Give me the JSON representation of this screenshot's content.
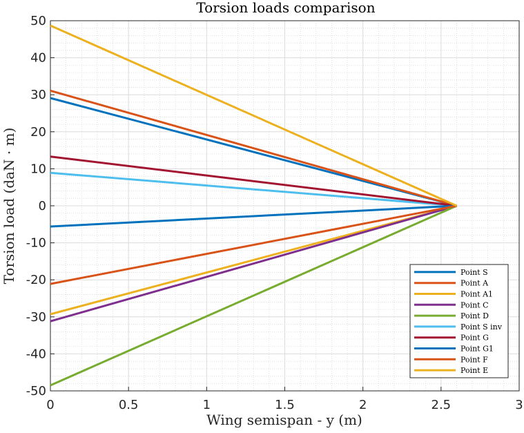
{
  "chart_data": {
    "type": "line",
    "title": "Torsion loads comparison",
    "xlabel": "Wing semispan - y (m)",
    "ylabel": "Torsion load (daN · m)",
    "xlim": [
      0,
      3
    ],
    "ylim": [
      -50,
      50
    ],
    "xticks": [
      "0",
      "0.5",
      "1",
      "1.5",
      "2",
      "2.5",
      "3"
    ],
    "yticks": [
      "50",
      "40",
      "30",
      "20",
      "10",
      "0",
      "-10",
      "-20",
      "-30",
      "-40",
      "-50"
    ],
    "grid": true,
    "minor_grid": true,
    "legend_position": "bottom-right",
    "series": [
      {
        "name": "Point S",
        "color": "#0072BD",
        "x": [
          0,
          2.6
        ],
        "y": [
          29.1,
          0
        ]
      },
      {
        "name": "Point A",
        "color": "#D95319",
        "x": [
          0,
          2.6
        ],
        "y": [
          31.1,
          0
        ]
      },
      {
        "name": "Point A1",
        "color": "#EDB120",
        "x": [
          0,
          2.6
        ],
        "y": [
          -29.3,
          0
        ]
      },
      {
        "name": "Point C",
        "color": "#7E2F8E",
        "x": [
          0,
          2.6
        ],
        "y": [
          -31.2,
          0
        ]
      },
      {
        "name": "Point D",
        "color": "#77AC30",
        "x": [
          0,
          2.6
        ],
        "y": [
          -48.5,
          0
        ]
      },
      {
        "name": "Point S inv",
        "color": "#4DBEEE",
        "x": [
          0,
          2.6
        ],
        "y": [
          8.9,
          0
        ]
      },
      {
        "name": "Point G",
        "color": "#A2142F",
        "x": [
          0,
          2.6
        ],
        "y": [
          13.3,
          0
        ]
      },
      {
        "name": "Point G1",
        "color": "#0072BD",
        "x": [
          0,
          2.6
        ],
        "y": [
          -5.6,
          0
        ]
      },
      {
        "name": "Point F",
        "color": "#D95319",
        "x": [
          0,
          2.6
        ],
        "y": [
          -21.1,
          0
        ]
      },
      {
        "name": "Point E",
        "color": "#EDB120",
        "x": [
          0,
          2.6
        ],
        "y": [
          48.7,
          0
        ]
      }
    ]
  }
}
